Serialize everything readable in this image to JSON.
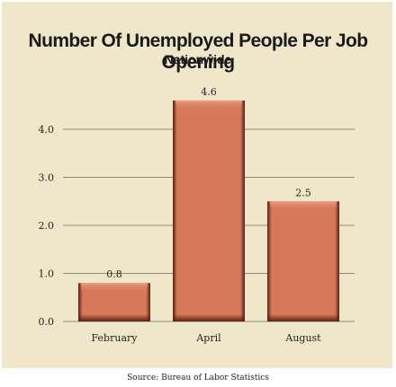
{
  "chart_data": {
    "type": "bar",
    "title": "Number Of Unemployed People Per Job Opening",
    "subtitle": "Nationwide",
    "categories": [
      "February",
      "April",
      "August"
    ],
    "values": [
      0.8,
      4.6,
      2.5
    ],
    "value_labels": [
      "0.8",
      "4.6",
      "2.5"
    ],
    "yticks": [
      "0.0",
      "1.0",
      "2.0",
      "3.0",
      "4.0"
    ],
    "ylim": [
      0,
      4.0
    ],
    "grid": true,
    "source": "Source: Bureau of Labor Statistics",
    "colors": {
      "background": "#f0e6c9",
      "bar": "#d6795a",
      "bar_dark": "#5a1f12",
      "bar_light": "#eea286",
      "grid": "#6b6b6b"
    }
  }
}
